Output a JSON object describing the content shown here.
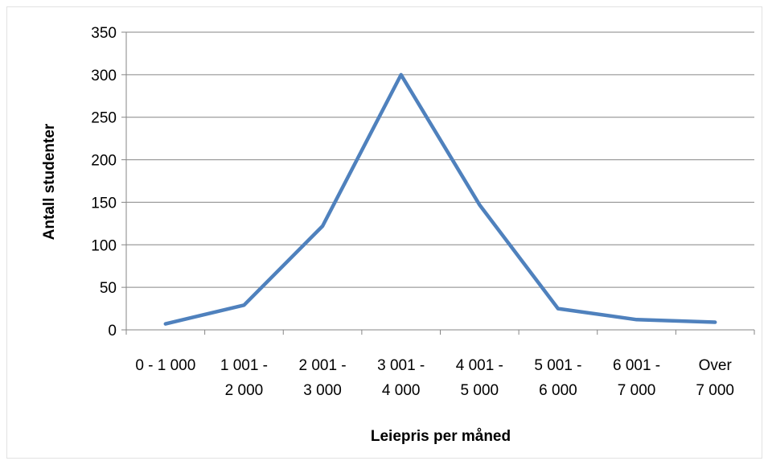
{
  "chart_data": {
    "type": "line",
    "title": "",
    "xlabel": "Leiepris per måned",
    "ylabel": "Antall studenter",
    "categories": [
      [
        "0 - 1 000"
      ],
      [
        "1 001  -",
        "2 000"
      ],
      [
        "2 001  -",
        "3 000"
      ],
      [
        "3 001  -",
        "4 000"
      ],
      [
        "4 001  -",
        "5 000"
      ],
      [
        "5 001  -",
        "6 000"
      ],
      [
        "6 001  -",
        "7 000"
      ],
      [
        "Over",
        "7 000"
      ]
    ],
    "series": [
      {
        "values": [
          7,
          29,
          122,
          300,
          147,
          25,
          12,
          9
        ]
      }
    ],
    "ylim": [
      0,
      350
    ],
    "yticks": [
      0,
      50,
      100,
      150,
      200,
      250,
      300,
      350
    ],
    "grid": true,
    "legend": "none",
    "colors": {
      "line": "#4F81BD",
      "grid": "#868686",
      "axis": "#868686"
    }
  }
}
